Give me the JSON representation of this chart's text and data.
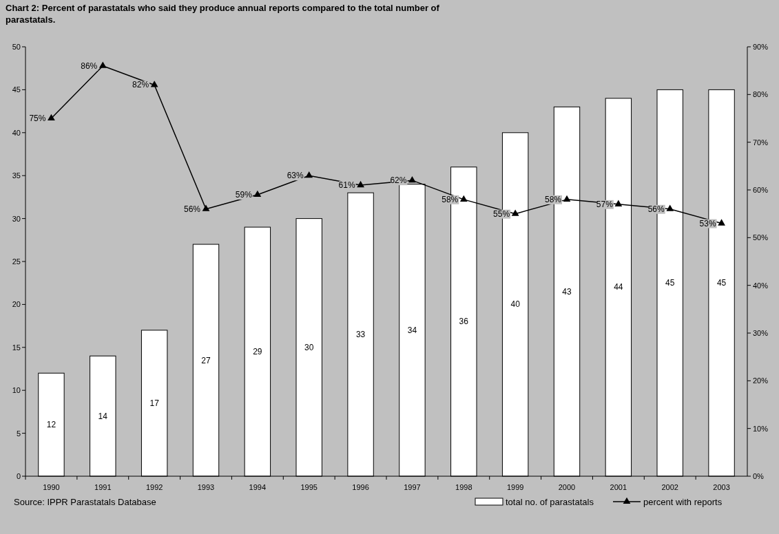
{
  "chart_data": {
    "type": "bar",
    "title": "Chart 2: Percent of parastatals who said they produce annual reports compared to the total number of parastatals.",
    "categories": [
      "1990",
      "1991",
      "1992",
      "1993",
      "1994",
      "1995",
      "1996",
      "1997",
      "1998",
      "1999",
      "2000",
      "2001",
      "2002",
      "2003"
    ],
    "series": [
      {
        "name": "total no. of parastatals",
        "color": "#ffffff",
        "values": [
          12,
          14,
          17,
          27,
          29,
          30,
          33,
          34,
          36,
          40,
          43,
          44,
          45,
          45
        ],
        "value_labels": [
          "12",
          "14",
          "17",
          "27",
          "29",
          "30",
          "33",
          "34",
          "36",
          "40",
          "43",
          "44",
          "45",
          "45"
        ]
      },
      {
        "name": "percent with reports",
        "type": "line",
        "axis": "y2",
        "color": "#000000",
        "marker": "triangle",
        "values": [
          75,
          86,
          82,
          56,
          59,
          63,
          61,
          62,
          58,
          55,
          58,
          57,
          56,
          53
        ],
        "value_labels": [
          "75%",
          "86%",
          "82%",
          "56%",
          "59%",
          "63%",
          "61%",
          "62%",
          "58%",
          "55%",
          "58%",
          "57%",
          "56%",
          "53%"
        ]
      }
    ],
    "ylim": [
      0,
      50
    ],
    "yticks": [
      0,
      5,
      10,
      15,
      20,
      25,
      30,
      35,
      40,
      45,
      50
    ],
    "y2lim": [
      0,
      90
    ],
    "y2ticks": [
      {
        "value": 0,
        "label": "0%"
      },
      {
        "value": 10,
        "label": "10%"
      },
      {
        "value": 20,
        "label": "20%"
      },
      {
        "value": 30,
        "label": "30%"
      },
      {
        "value": 40,
        "label": "40%"
      },
      {
        "value": 50,
        "label": "50%"
      },
      {
        "value": 60,
        "label": "60%"
      },
      {
        "value": 70,
        "label": "70%"
      },
      {
        "value": 80,
        "label": "80%"
      },
      {
        "value": 90,
        "label": "90%"
      }
    ],
    "grid": false,
    "legend": "bottom",
    "annotations": [
      "Source: IPPR Parastatals Database"
    ]
  }
}
